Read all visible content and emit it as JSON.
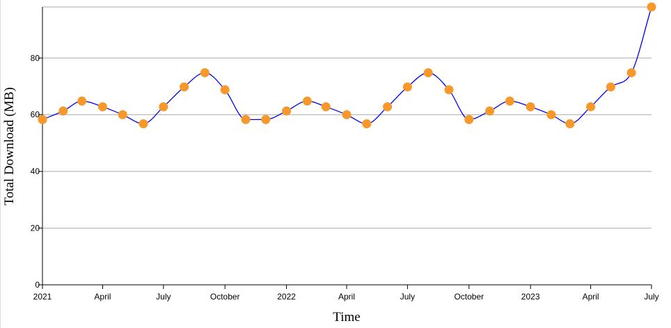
{
  "chart_data": {
    "type": "line",
    "xlabel": "Time",
    "ylabel": "Total Download (MB)",
    "ylim": [
      0,
      98
    ],
    "yticks": [
      0,
      20,
      40,
      60,
      80
    ],
    "xlim": [
      "2021-01-01",
      "2023-07-01"
    ],
    "xticks": [
      {
        "date": "2021-01-01",
        "label": "2021"
      },
      {
        "date": "2021-04-01",
        "label": "April"
      },
      {
        "date": "2021-07-01",
        "label": "July"
      },
      {
        "date": "2021-10-01",
        "label": "October"
      },
      {
        "date": "2022-01-01",
        "label": "2022"
      },
      {
        "date": "2022-04-01",
        "label": "April"
      },
      {
        "date": "2022-07-01",
        "label": "July"
      },
      {
        "date": "2022-10-01",
        "label": "October"
      },
      {
        "date": "2023-01-01",
        "label": "2023"
      },
      {
        "date": "2023-04-01",
        "label": "April"
      },
      {
        "date": "2023-07-01",
        "label": "July"
      }
    ],
    "grid": "horizontal",
    "colors": {
      "line": "#0000ee",
      "point": "#f7982b",
      "grid": "#a9a9a9"
    },
    "series": [
      {
        "x": [
          "2021-01-01",
          "2021-02-01",
          "2021-03-01",
          "2021-04-01",
          "2021-05-01",
          "2021-06-01",
          "2021-07-01",
          "2021-08-01",
          "2021-09-01",
          "2021-10-01",
          "2021-11-01",
          "2021-12-01",
          "2022-01-01",
          "2022-02-01",
          "2022-03-01",
          "2022-04-01",
          "2022-05-01",
          "2022-06-01",
          "2022-07-01",
          "2022-08-01",
          "2022-09-01",
          "2022-10-01",
          "2022-11-01",
          "2022-12-01",
          "2023-01-01",
          "2023-02-01",
          "2023-03-01",
          "2023-04-01",
          "2023-05-01",
          "2023-06-01",
          "2023-07-01"
        ],
        "values": [
          58.3,
          61.3,
          64.8,
          62.8,
          60.0,
          56.8,
          62.8,
          69.8,
          74.8,
          68.8,
          58.3,
          58.3,
          61.3,
          64.8,
          62.8,
          60.0,
          56.8,
          62.8,
          69.8,
          74.8,
          68.8,
          58.3,
          61.3,
          64.8,
          62.8,
          60.0,
          56.8,
          62.8,
          69.8,
          74.8,
          98.0
        ]
      }
    ]
  }
}
